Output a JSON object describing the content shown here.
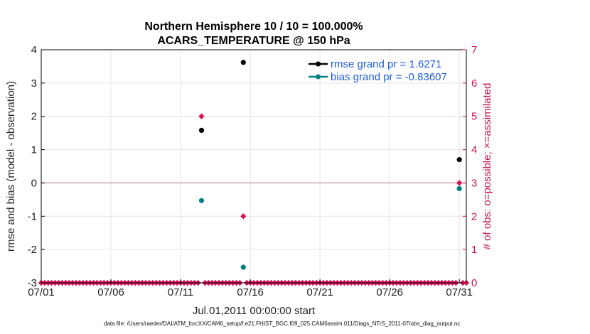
{
  "chart_data": {
    "type": "scatter",
    "title_line1": "Northern Hemisphere 10 / 10 = 100.000%",
    "title_line2": "ACARS_TEMPERATURE @ 150 hPa",
    "xlabel": "Jul.01,2011 00:00:00 start",
    "ylabel": "rmse and bias (model - observation)",
    "y2label": "# of obs: o=possible; ×=assimilated",
    "xlim": [
      1,
      31.5
    ],
    "ylim": [
      -3,
      4
    ],
    "y2lim": [
      0,
      7
    ],
    "x_ticks": [
      {
        "x": 1,
        "label": "07/01"
      },
      {
        "x": 6,
        "label": "07/06"
      },
      {
        "x": 11,
        "label": "07/11"
      },
      {
        "x": 16,
        "label": "07/16"
      },
      {
        "x": 21,
        "label": "07/21"
      },
      {
        "x": 26,
        "label": "07/26"
      },
      {
        "x": 31,
        "label": "07/31"
      }
    ],
    "y_ticks": [
      4,
      3,
      2,
      1,
      0,
      -1,
      -2,
      -3
    ],
    "y2_ticks": [
      7,
      6,
      5,
      4,
      3,
      2,
      1,
      0
    ],
    "zero_line": 0,
    "colors": {
      "rmse": "#000000",
      "bias": "#008080",
      "obs": "#d6155a",
      "zero": "#c9a9b3",
      "grid": "#e4e4e4",
      "right_axis": "#c8104e",
      "legend_text": "#1f5ed8"
    },
    "series": [
      {
        "name": "rmse",
        "legend": "rmse grand pr = 1.6271",
        "points": [
          [
            12.5,
            1.58
          ],
          [
            15.5,
            3.62
          ],
          [
            31,
            0.7
          ]
        ]
      },
      {
        "name": "bias",
        "legend": "bias grand pr = -0.83607",
        "points": [
          [
            12.5,
            -0.53
          ],
          [
            15.5,
            -2.53
          ],
          [
            31,
            -0.17
          ]
        ]
      }
    ],
    "obs_counts": {
      "start": 1,
      "step": 0.25,
      "n": 123,
      "nonzero": [
        [
          12.5,
          5
        ],
        [
          15.5,
          2
        ],
        [
          31,
          3
        ]
      ]
    },
    "footer": "data file: /Users/raeder/DAI/ATM_forcXX/CAM6_setup/f.e21.FHIST_BGC.f09_025.CAM6assim.011/Diags_NTrS_2011-07/obs_diag_output.nc"
  }
}
